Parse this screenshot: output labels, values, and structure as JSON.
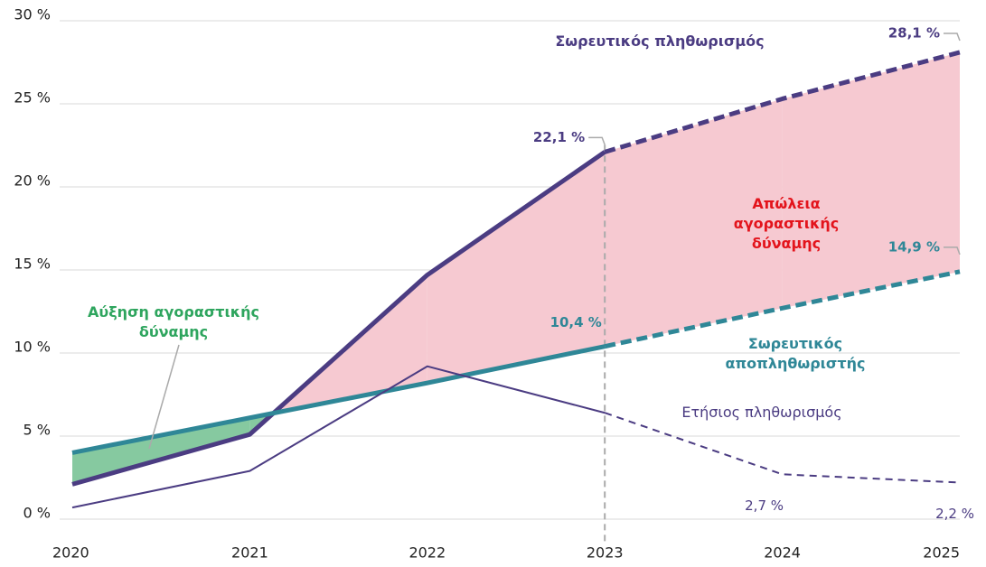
{
  "chart_data": {
    "type": "line",
    "x": [
      2020,
      2021,
      2022,
      2023,
      2024,
      2025
    ],
    "xlim": [
      2020,
      2025
    ],
    "xticks": [
      2020,
      2021,
      2022,
      2023,
      2024,
      2025
    ],
    "ylim": [
      0,
      30
    ],
    "yticks": [
      {
        "value": 0,
        "label": "0 %"
      },
      {
        "value": 5,
        "label": "5 %"
      },
      {
        "value": 10,
        "label": "10 %"
      },
      {
        "value": 15,
        "label": "15 %"
      },
      {
        "value": 20,
        "label": "20 %"
      },
      {
        "value": 25,
        "label": "25 %"
      },
      {
        "value": 30,
        "label": "30 %"
      }
    ],
    "grid": true,
    "projection_start": 2023,
    "series": [
      {
        "name": "Σωρευτικός πληθωρισμός",
        "color": "#4b3c82",
        "values": [
          2.1,
          5.1,
          14.7,
          22.1,
          25.3,
          28.1
        ],
        "value_labels": [
          null,
          null,
          null,
          "22,1 %",
          null,
          "28,1 %"
        ]
      },
      {
        "name": "Σωρευτικός αποπληθωριστής",
        "color": "#2f8797",
        "values": [
          4.0,
          6.1,
          8.2,
          10.4,
          12.7,
          14.9
        ],
        "value_labels": [
          null,
          null,
          null,
          "10,4 %",
          null,
          "14,9 %"
        ]
      },
      {
        "name": "Ετήσιος πληθωρισμός",
        "color": "#4b3c82",
        "values": [
          0.7,
          2.9,
          9.2,
          6.4,
          2.7,
          2.2
        ],
        "value_labels": [
          null,
          null,
          null,
          null,
          "2,7 %",
          "2,2 %"
        ]
      }
    ],
    "annotations": [
      {
        "text": "Αύξηση αγοραστικής δύναμης",
        "color": "#2ea55e"
      },
      {
        "text": "Απώλεια αγοραστικής δύναμης",
        "color": "#e3141c"
      }
    ],
    "fill_gain_color": "#86c9a0",
    "fill_loss_color": "#f6c9d1"
  }
}
